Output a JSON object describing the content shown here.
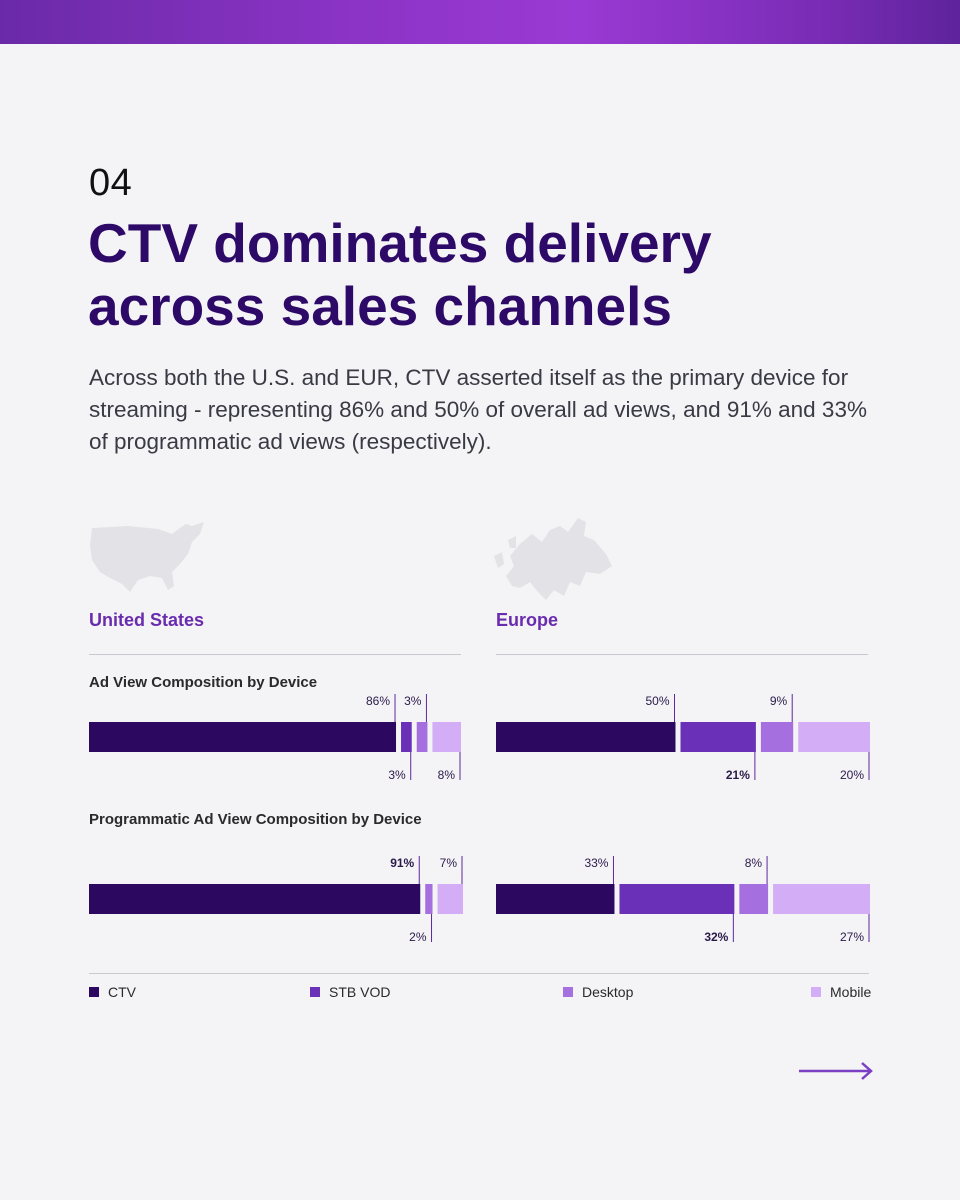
{
  "header": {
    "section_number": "04",
    "title": "CTV dominates delivery across sales channels",
    "intro": "Across both the U.S. and EUR, CTV asserted itself as the primary device for streaming - representing 86% and 50% of overall ad views, and 91% and 33% of programmatic ad views (respectively)."
  },
  "regions": {
    "us": "United States",
    "eu": "Europe"
  },
  "chart_titles": {
    "ad_view": "Ad View Composition by Device",
    "programmatic": "Programmatic Ad View Composition by Device"
  },
  "legend": [
    {
      "label": "CTV",
      "color": "#2c0860"
    },
    {
      "label": "STB VOD",
      "color": "#6b30b8"
    },
    {
      "label": "Desktop",
      "color": "#a66fe0"
    },
    {
      "label": "Mobile",
      "color": "#d3aef7"
    }
  ],
  "chart_data": [
    {
      "type": "bar",
      "orientation": "horizontal-stacked-100",
      "title": "Ad View Composition by Device",
      "region": "United States",
      "categories": [
        "CTV",
        "STB VOD",
        "Desktop",
        "Mobile"
      ],
      "values": [
        86,
        3,
        3,
        8
      ],
      "labels": [
        "86%",
        "3%",
        "3%",
        "8%"
      ],
      "label_positions": [
        "above",
        "below",
        "above",
        "below"
      ],
      "bold": [
        false,
        false,
        false,
        false
      ]
    },
    {
      "type": "bar",
      "orientation": "horizontal-stacked-100",
      "title": "Ad View Composition by Device",
      "region": "Europe",
      "categories": [
        "CTV",
        "STB VOD",
        "Desktop",
        "Mobile"
      ],
      "values": [
        50,
        21,
        9,
        20
      ],
      "labels": [
        "50%",
        "21%",
        "9%",
        "20%"
      ],
      "label_positions": [
        "above",
        "below",
        "above",
        "below"
      ],
      "bold": [
        false,
        true,
        false,
        false
      ]
    },
    {
      "type": "bar",
      "orientation": "horizontal-stacked-100",
      "title": "Programmatic Ad View Composition by Device",
      "region": "United States",
      "categories": [
        "CTV",
        "STB VOD",
        "Desktop",
        "Mobile"
      ],
      "values": [
        91,
        0,
        2,
        7
      ],
      "labels": [
        "91%",
        "",
        "2%",
        "7%"
      ],
      "label_positions": [
        "above",
        "none",
        "below",
        "above"
      ],
      "bold": [
        true,
        false,
        false,
        false
      ]
    },
    {
      "type": "bar",
      "orientation": "horizontal-stacked-100",
      "title": "Programmatic Ad View Composition by Device",
      "region": "Europe",
      "categories": [
        "CTV",
        "STB VOD",
        "Desktop",
        "Mobile"
      ],
      "values": [
        33,
        32,
        8,
        27
      ],
      "labels": [
        "33%",
        "32%",
        "8%",
        "27%"
      ],
      "label_positions": [
        "above",
        "below",
        "above",
        "below"
      ],
      "bold": [
        false,
        true,
        false,
        false
      ]
    }
  ]
}
